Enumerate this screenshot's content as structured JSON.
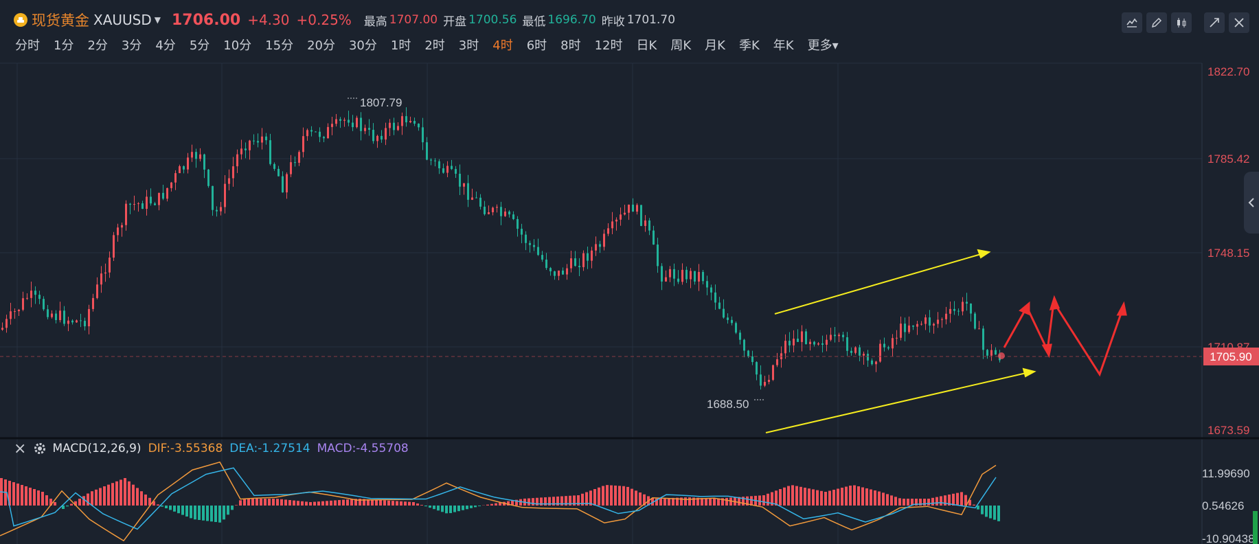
{
  "header": {
    "symbol_name": "现货黄金",
    "symbol_code": "XAUUSD",
    "last_price": "1706.00",
    "change": "+4.30",
    "change_pct": "+0.25%",
    "high_label": "最高",
    "high_value": "1707.00",
    "open_label": "开盘",
    "open_value": "1700.56",
    "low_label": "最低",
    "low_value": "1696.70",
    "prev_close_label": "昨收",
    "prev_close_value": "1701.70"
  },
  "timeframes": [
    "分时",
    "1分",
    "2分",
    "3分",
    "4分",
    "5分",
    "10分",
    "15分",
    "20分",
    "30分",
    "1时",
    "2时",
    "3时",
    "4时",
    "6时",
    "8时",
    "12时",
    "日K",
    "周K",
    "月K",
    "季K",
    "年K",
    "更多"
  ],
  "active_timeframe": "4时",
  "toolbar_icons": [
    "indicator-icon",
    "draw-pen-icon",
    "candle-style-icon",
    "collapse-icon",
    "close-icon"
  ],
  "price_axis": [
    "1822.70",
    "1785.42",
    "1748.15",
    "1710.87",
    "1673.59"
  ],
  "current_price_tag": "1705.90",
  "annotations": {
    "high_mark": "1807.79",
    "low_mark": "1688.50"
  },
  "macd": {
    "name": "MACD(12,26,9)",
    "dif": "DIF:-3.55368",
    "dea": "DEA:-1.27514",
    "macd": "MACD:-4.55708",
    "axis": [
      "11.99690",
      "0.54626",
      "-10.90438"
    ]
  },
  "colors": {
    "up": "#f0525a",
    "down": "#21b39a",
    "background": "#1b222d",
    "accent": "#f07a2a",
    "trendline": "#f5ec1e",
    "forecast": "#ee2f2f"
  }
}
